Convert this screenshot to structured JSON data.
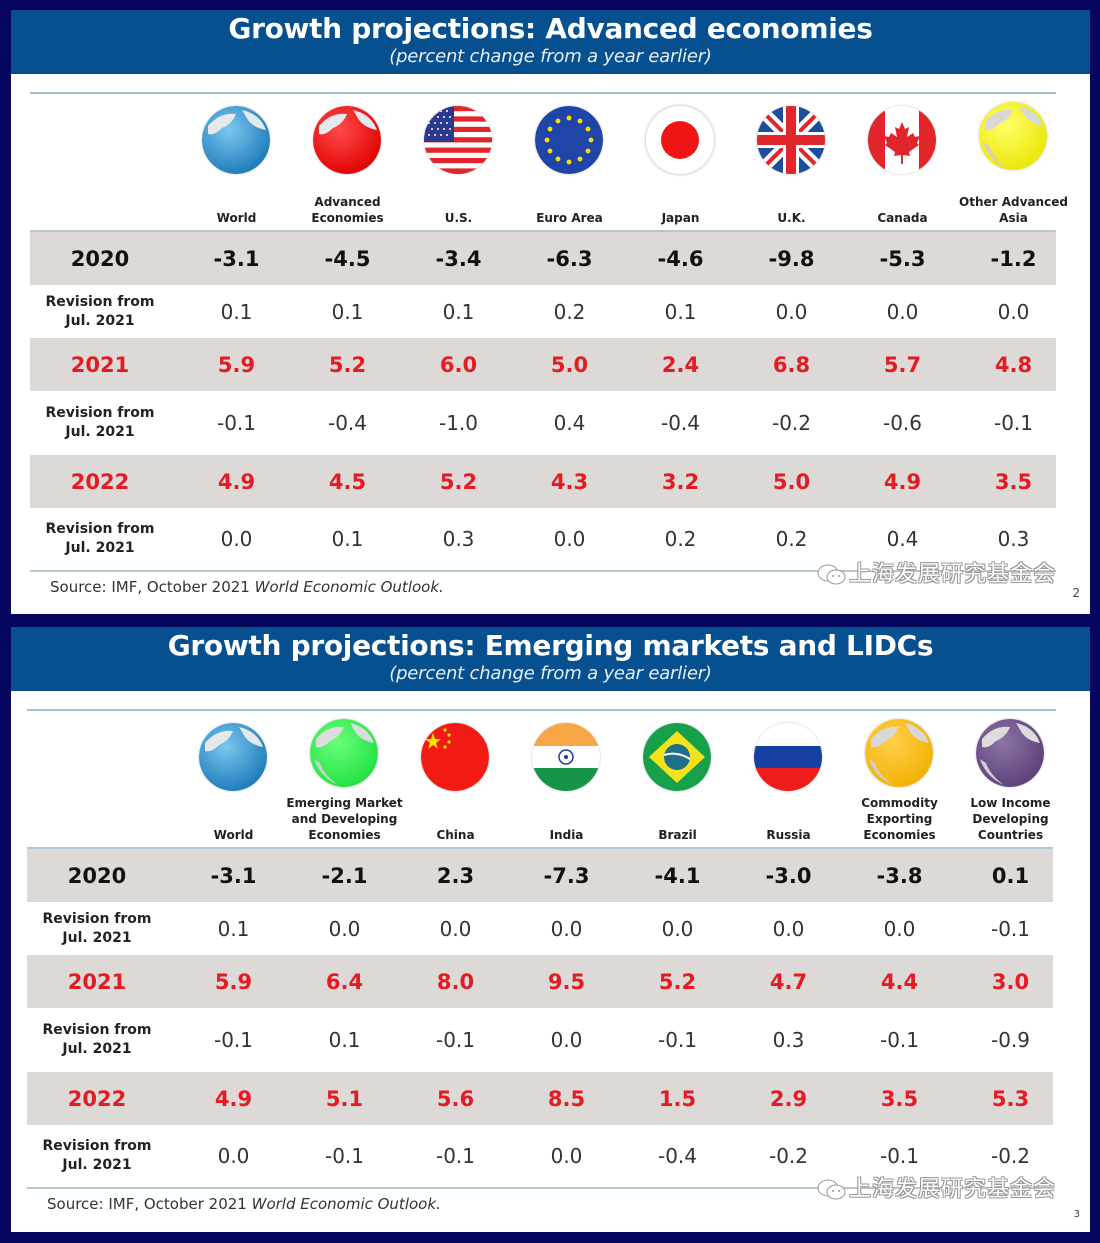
{
  "slides": [
    {
      "title": "Growth projections:  Advanced economies",
      "subtitle": "(percent change from a year earlier)",
      "columns": [
        {
          "label": "World",
          "icon": "globe-blue-icon"
        },
        {
          "label": "Advanced Economies",
          "icon": "globe-red-icon"
        },
        {
          "label": "U.S.",
          "icon": "us-flag-icon"
        },
        {
          "label": "Euro Area",
          "icon": "eu-flag-icon"
        },
        {
          "label": "Japan",
          "icon": "japan-flag-icon"
        },
        {
          "label": "U.K.",
          "icon": "uk-flag-icon"
        },
        {
          "label": "Canada",
          "icon": "canada-flag-icon"
        },
        {
          "label": "Other Advanced Asia",
          "icon": "globe-yellow-icon"
        }
      ],
      "rows": [
        {
          "label": "2020",
          "type": "year",
          "values": [
            "-3.1",
            "-4.5",
            "-3.4",
            "-6.3",
            "-4.6",
            "-9.8",
            "-5.3",
            "-1.2"
          ]
        },
        {
          "label": "Revision from Jul. 2021",
          "type": "revision",
          "values": [
            "0.1",
            "0.1",
            "0.1",
            "0.2",
            "0.1",
            "0.0",
            "0.0",
            "0.0"
          ]
        },
        {
          "label": "2021",
          "type": "year-red",
          "values": [
            "5.9",
            "5.2",
            "6.0",
            "5.0",
            "2.4",
            "6.8",
            "5.7",
            "4.8"
          ]
        },
        {
          "label": "Revision from Jul. 2021",
          "type": "revision",
          "values": [
            "-0.1",
            "-0.4",
            "-1.0",
            "0.4",
            "-0.4",
            "-0.2",
            "-0.6",
            "-0.1"
          ]
        },
        {
          "label": "2022",
          "type": "year-red",
          "values": [
            "4.9",
            "4.5",
            "5.2",
            "4.3",
            "3.2",
            "5.0",
            "4.9",
            "3.5"
          ]
        },
        {
          "label": "Revision from Jul. 2021",
          "type": "revision",
          "values": [
            "0.0",
            "0.1",
            "0.3",
            "0.0",
            "0.2",
            "0.2",
            "0.4",
            "0.3"
          ]
        }
      ],
      "source_prefix": "Source: IMF, October 2021 ",
      "source_italic": "World Economic Outlook.",
      "page_number": "2",
      "watermark": "上海发展研究基金会"
    },
    {
      "title": "Growth projections:  Emerging markets and LIDCs",
      "subtitle": "(percent change from a year earlier)",
      "columns": [
        {
          "label": "World",
          "icon": "globe-blue-icon"
        },
        {
          "label": "Emerging Market and Developing Economies",
          "icon": "globe-green-icon"
        },
        {
          "label": "China",
          "icon": "china-flag-icon"
        },
        {
          "label": "India",
          "icon": "india-flag-icon"
        },
        {
          "label": "Brazil",
          "icon": "brazil-flag-icon"
        },
        {
          "label": "Russia",
          "icon": "russia-flag-icon"
        },
        {
          "label": "Commodity Exporting Economies",
          "icon": "globe-orange-icon"
        },
        {
          "label": "Low Income Developing Countries",
          "icon": "globe-purple-icon"
        }
      ],
      "rows": [
        {
          "label": "2020",
          "type": "year",
          "values": [
            "-3.1",
            "-2.1",
            "2.3",
            "-7.3",
            "-4.1",
            "-3.0",
            "-3.8",
            "0.1"
          ]
        },
        {
          "label": "Revision from Jul. 2021",
          "type": "revision",
          "values": [
            "0.1",
            "0.0",
            "0.0",
            "0.0",
            "0.0",
            "0.0",
            "0.0",
            "-0.1"
          ]
        },
        {
          "label": "2021",
          "type": "year-red",
          "values": [
            "5.9",
            "6.4",
            "8.0",
            "9.5",
            "5.2",
            "4.7",
            "4.4",
            "3.0"
          ]
        },
        {
          "label": "Revision from Jul. 2021",
          "type": "revision",
          "values": [
            "-0.1",
            "0.1",
            "-0.1",
            "0.0",
            "-0.1",
            "0.3",
            "-0.1",
            "-0.9"
          ]
        },
        {
          "label": "2022",
          "type": "year-red",
          "values": [
            "4.9",
            "5.1",
            "5.6",
            "8.5",
            "1.5",
            "2.9",
            "3.5",
            "5.3"
          ]
        },
        {
          "label": "Revision from Jul. 2021",
          "type": "revision",
          "values": [
            "0.0",
            "-0.1",
            "-0.1",
            "0.0",
            "-0.4",
            "-0.2",
            "-0.1",
            "-0.2"
          ]
        }
      ],
      "source_prefix": "Source: IMF, October 2021 ",
      "source_italic": "World Economic Outlook.",
      "page_number": "3",
      "watermark": "上海发展研究基金会"
    }
  ],
  "colors": {
    "header_blue": "#06508f",
    "frame_navy": "#06065e",
    "year_row_bg": "#dcd9d7",
    "highlight_red": "#e41b23"
  }
}
